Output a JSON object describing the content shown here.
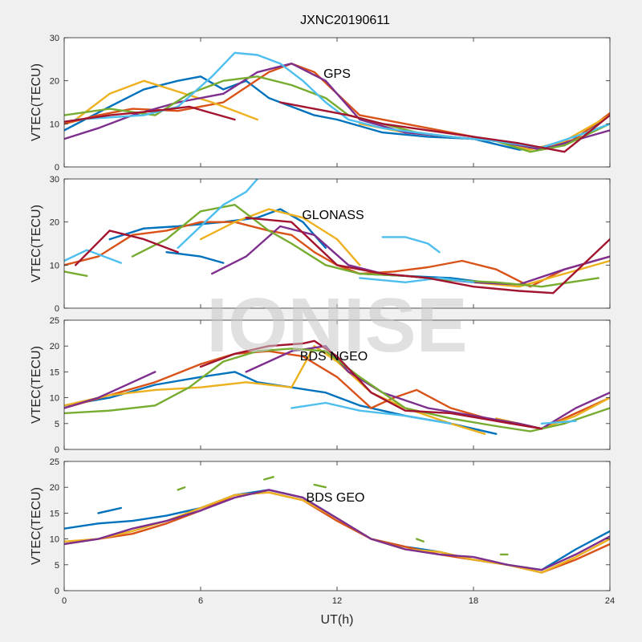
{
  "figure": {
    "title": "JXNC20190611",
    "xlabel": "UT(h)",
    "watermark": "IONISE"
  },
  "colors": [
    "#0072BD",
    "#D95319",
    "#EDB120",
    "#7E2F8E",
    "#77AC30",
    "#4DBEEE",
    "#A2142F"
  ],
  "chart_data": [
    {
      "type": "line",
      "annotation": "GPS",
      "ylabel": "VTEC(TECU)",
      "xlim": [
        0,
        24
      ],
      "ylim": [
        0,
        30
      ],
      "xticks": [
        0,
        6,
        12,
        18,
        24
      ],
      "yticks": [
        0,
        10,
        20,
        30
      ],
      "series": [
        {
          "color": 0,
          "x": [
            0,
            2,
            3.5,
            5,
            6,
            7
          ],
          "y": [
            8.5,
            14,
            18,
            20,
            21,
            18
          ]
        },
        {
          "color": 0,
          "x": [
            7,
            8,
            9,
            10,
            11,
            12,
            14,
            16,
            18,
            20,
            22,
            24
          ],
          "y": [
            18,
            20,
            16,
            14,
            12,
            11,
            8,
            7,
            6.5,
            4,
            5,
            12
          ]
        },
        {
          "color": 1,
          "x": [
            0,
            1.5,
            3,
            5,
            7,
            9,
            10,
            11,
            12,
            13,
            15,
            17,
            19,
            21,
            22.5,
            24
          ],
          "y": [
            10,
            12,
            13.5,
            13,
            15,
            22,
            24,
            22,
            17,
            12,
            10,
            8,
            6,
            4,
            6.5,
            12.5
          ]
        },
        {
          "color": 2,
          "x": [
            0.5,
            2,
            3.5,
            5,
            6.5,
            8.5
          ],
          "y": [
            11,
            17,
            20,
            17.5,
            15,
            11
          ]
        },
        {
          "color": 2,
          "x": [
            13,
            15,
            17,
            19,
            20.5,
            22,
            24
          ],
          "y": [
            10,
            8,
            7,
            6,
            4,
            6,
            12
          ]
        },
        {
          "color": 3,
          "x": [
            0,
            1.5,
            3,
            5,
            7,
            8.5,
            10,
            11.5,
            13,
            15,
            17,
            19,
            21,
            22,
            24
          ],
          "y": [
            6.5,
            9,
            12,
            15,
            17,
            22,
            24,
            20,
            11,
            8,
            7,
            6,
            4,
            5.5,
            8.5
          ]
        },
        {
          "color": 4,
          "x": [
            0,
            2,
            4,
            5.5,
            7,
            8.5,
            10,
            11.5,
            12.5,
            14,
            15.5,
            17,
            19,
            20.5,
            22,
            24
          ],
          "y": [
            12,
            13.5,
            12,
            17,
            20,
            21,
            19,
            16,
            12,
            10,
            8,
            7,
            6,
            3.5,
            5,
            10
          ]
        },
        {
          "color": 5,
          "x": [
            0.5,
            2,
            3.5,
            5,
            6.5,
            7.5,
            8.5,
            9.5,
            10.5,
            11.5,
            12.5,
            14,
            15.5,
            17,
            19,
            21,
            23,
            24
          ],
          "y": [
            11,
            11.5,
            12,
            14,
            21,
            26.5,
            26,
            24,
            20,
            15,
            11,
            9,
            8,
            7,
            6,
            4.5,
            8,
            10
          ]
        },
        {
          "color": 6,
          "x": [
            0,
            2,
            4,
            5.5,
            7.5
          ],
          "y": [
            10.5,
            12,
            13,
            14,
            11
          ]
        },
        {
          "color": 6,
          "x": [
            9.5,
            11,
            12.5,
            14,
            16,
            18,
            20,
            22,
            24
          ],
          "y": [
            15,
            13.5,
            12,
            10,
            8.5,
            7,
            5.5,
            3.5,
            12
          ]
        }
      ]
    },
    {
      "type": "line",
      "annotation": "GLONASS",
      "ylabel": "VTEC(TECU)",
      "xlim": [
        0,
        24
      ],
      "ylim": [
        0,
        30
      ],
      "xticks": [
        0,
        6,
        12,
        18,
        24
      ],
      "yticks": [
        0,
        10,
        20,
        30
      ],
      "series": [
        {
          "color": 0,
          "x": [
            2,
            3.5,
            5,
            7,
            8.5,
            9.5,
            10.5,
            11.5
          ],
          "y": [
            16,
            18.5,
            19,
            20,
            21,
            23,
            20,
            14
          ]
        },
        {
          "color": 0,
          "x": [
            4.5,
            6,
            7
          ],
          "y": [
            13,
            12,
            10.5
          ]
        },
        {
          "color": 0,
          "x": [
            13,
            15,
            17,
            18.5
          ],
          "y": [
            8,
            7.5,
            7,
            6
          ]
        },
        {
          "color": 1,
          "x": [
            0,
            1.5,
            3,
            4.5,
            6,
            7.5,
            9,
            10,
            11,
            12,
            13,
            14.5,
            16,
            17.5,
            19,
            20.5,
            22,
            24
          ],
          "y": [
            10,
            12,
            17,
            18,
            20,
            20,
            18,
            17,
            13,
            10,
            8,
            8.5,
            9.5,
            11,
            9,
            5,
            9,
            12
          ]
        },
        {
          "color": 2,
          "x": [
            6,
            7.5,
            9,
            10.5,
            12,
            13
          ],
          "y": [
            16,
            20,
            23,
            21,
            16,
            10
          ]
        },
        {
          "color": 2,
          "x": [
            18,
            20,
            22,
            24
          ],
          "y": [
            6,
            5,
            8,
            11
          ]
        },
        {
          "color": 3,
          "x": [
            6.5,
            8,
            9.5,
            11,
            12.5,
            14,
            16,
            18,
            20,
            22,
            24
          ],
          "y": [
            8,
            12,
            19,
            17,
            10,
            8,
            7,
            6,
            5.5,
            9,
            12
          ]
        },
        {
          "color": 4,
          "x": [
            3,
            4.5,
            6,
            7.5,
            9,
            10,
            11.5,
            13,
            15,
            17,
            19,
            21,
            23.5
          ],
          "y": [
            12,
            16,
            22.5,
            24,
            18,
            15,
            10,
            8,
            7.5,
            6.5,
            6,
            5,
            7
          ]
        },
        {
          "color": 4,
          "x": [
            0,
            1
          ],
          "y": [
            8.5,
            7.5
          ]
        },
        {
          "color": 5,
          "x": [
            0,
            1,
            2.5
          ],
          "y": [
            11,
            13.5,
            10.5
          ]
        },
        {
          "color": 5,
          "x": [
            5,
            6,
            7,
            8,
            8.5
          ],
          "y": [
            14,
            19,
            24,
            27,
            30
          ]
        },
        {
          "color": 5,
          "x": [
            14,
            15,
            16,
            16.5
          ],
          "y": [
            16.5,
            16.5,
            15,
            13
          ]
        },
        {
          "color": 5,
          "x": [
            13,
            15,
            16.5,
            18
          ],
          "y": [
            7,
            6,
            7,
            6
          ]
        },
        {
          "color": 6,
          "x": [
            0.5,
            2,
            3.5,
            5
          ],
          "y": [
            10,
            18,
            16,
            13
          ]
        },
        {
          "color": 6,
          "x": [
            8,
            10,
            12,
            14,
            16,
            18,
            20,
            21.5,
            23,
            24
          ],
          "y": [
            21,
            20,
            10,
            8,
            7,
            5,
            4,
            3.5,
            11,
            16
          ]
        }
      ]
    },
    {
      "type": "line",
      "annotation": "BDS NGEO",
      "ylabel": "VTEC(TECU)",
      "xlim": [
        0,
        24
      ],
      "ylim": [
        0,
        25
      ],
      "xticks": [
        0,
        6,
        12,
        18,
        24
      ],
      "yticks": [
        0,
        5,
        10,
        15,
        20,
        25
      ],
      "series": [
        {
          "color": 0,
          "x": [
            0,
            2,
            4,
            6,
            7.5,
            8.5,
            10,
            11.5,
            13,
            15,
            17,
            19
          ],
          "y": [
            8.5,
            10,
            12.5,
            14,
            15,
            13,
            12,
            11,
            8.5,
            6.5,
            5,
            3
          ]
        },
        {
          "color": 1,
          "x": [
            0,
            2,
            4,
            6,
            7.5,
            9,
            10.5,
            12,
            13.5,
            14.5,
            15.5,
            17,
            19,
            21,
            22.5,
            24
          ],
          "y": [
            8,
            10.5,
            13,
            16.5,
            18.5,
            19,
            18,
            14,
            8,
            10,
            11.5,
            8,
            5.5,
            4,
            7,
            10
          ]
        },
        {
          "color": 2,
          "x": [
            0,
            2,
            4,
            6,
            8,
            10,
            11,
            12,
            13.5,
            15,
            17,
            18.5
          ],
          "y": [
            8.5,
            10.5,
            11.5,
            12,
            13,
            12,
            20,
            17,
            11,
            8,
            5,
            3
          ]
        },
        {
          "color": 2,
          "x": [
            19,
            21,
            22.5,
            24
          ],
          "y": [
            6,
            4,
            6.5,
            10
          ]
        },
        {
          "color": 3,
          "x": [
            0,
            1.5,
            3,
            4
          ],
          "y": [
            8,
            10,
            13,
            15
          ]
        },
        {
          "color": 3,
          "x": [
            8,
            10,
            11.5,
            12.5,
            14,
            16,
            18,
            20,
            21,
            22.5,
            24
          ],
          "y": [
            15,
            19,
            20,
            15,
            11,
            8,
            6.5,
            5,
            4,
            8,
            11
          ]
        },
        {
          "color": 4,
          "x": [
            0,
            2,
            4,
            5.5,
            7,
            8.5,
            10,
            11.5,
            13,
            15,
            17,
            19,
            20.5,
            22,
            24
          ],
          "y": [
            7,
            7.5,
            8.5,
            12,
            17,
            19,
            19.5,
            19,
            14,
            8,
            6,
            4.5,
            3.5,
            5,
            8
          ]
        },
        {
          "color": 5,
          "x": [
            10,
            11.5,
            13,
            15,
            17
          ],
          "y": [
            8,
            9,
            7.5,
            6.5,
            5
          ]
        },
        {
          "color": 5,
          "x": [
            21,
            22.5
          ],
          "y": [
            5,
            5.5
          ]
        },
        {
          "color": 6,
          "x": [
            6,
            7.5,
            9,
            10.5,
            11,
            12,
            13.5,
            15,
            17,
            19,
            21
          ],
          "y": [
            16,
            18.5,
            20,
            20.5,
            21,
            18,
            11,
            7.5,
            7,
            5.5,
            4
          ]
        }
      ]
    },
    {
      "type": "line",
      "annotation": "BDS GEO",
      "ylabel": "VTEC(TECU)",
      "xlim": [
        0,
        24
      ],
      "ylim": [
        0,
        25
      ],
      "xticks": [
        0,
        6,
        12,
        18,
        24
      ],
      "yticks": [
        0,
        5,
        10,
        15,
        20,
        25
      ],
      "series": [
        {
          "color": 0,
          "x": [
            0,
            1.5,
            3,
            4.5,
            6,
            7.5,
            9,
            10.5,
            12,
            13.5,
            15,
            16.5,
            18,
            19.5,
            21,
            22.5,
            24
          ],
          "y": [
            12,
            13,
            13.5,
            14.5,
            16,
            18.5,
            19.5,
            18,
            14,
            10,
            8.5,
            7.5,
            6,
            5,
            4,
            8,
            11.5
          ]
        },
        {
          "color": 0,
          "x": [
            1.5,
            2.5
          ],
          "y": [
            15,
            16
          ]
        },
        {
          "color": 1,
          "x": [
            0,
            1.5,
            3,
            4.5,
            6,
            7.5,
            9,
            10.5,
            12,
            13.5,
            15,
            16.5,
            18,
            19.5,
            21,
            22.5,
            24
          ],
          "y": [
            9,
            10,
            11,
            13,
            15.5,
            18.5,
            19,
            17.5,
            13.5,
            10,
            8.5,
            7,
            6,
            5,
            3.5,
            6,
            9
          ]
        },
        {
          "color": 2,
          "x": [
            0,
            1.5,
            3,
            4.5,
            6,
            7.5,
            9,
            10.5,
            12,
            13.5,
            15,
            16.5,
            18,
            19.5,
            21,
            22.5,
            24
          ],
          "y": [
            9.5,
            10,
            11.5,
            13.5,
            16,
            18.5,
            19,
            17.5,
            14,
            10,
            8,
            7.5,
            6,
            5,
            3.5,
            6.5,
            10
          ]
        },
        {
          "color": 3,
          "x": [
            0,
            1.5,
            3,
            4.5,
            6,
            7.5,
            9,
            10.5,
            12,
            13.5,
            15,
            16.5,
            18,
            19.5,
            21,
            22.5,
            24
          ],
          "y": [
            9,
            10,
            12,
            13.5,
            15.5,
            18,
            19.5,
            18,
            14,
            10,
            8,
            7,
            6.5,
            5,
            4,
            7,
            10.5
          ]
        },
        {
          "color": 4,
          "x": [
            5,
            5.3
          ],
          "y": [
            19.5,
            20
          ]
        },
        {
          "color": 4,
          "x": [
            8.8,
            9.2
          ],
          "y": [
            21.5,
            22
          ]
        },
        {
          "color": 4,
          "x": [
            11,
            11.5
          ],
          "y": [
            20.5,
            20
          ]
        },
        {
          "color": 4,
          "x": [
            15.5,
            15.8
          ],
          "y": [
            10,
            9.5
          ]
        },
        {
          "color": 4,
          "x": [
            19.2,
            19.5
          ],
          "y": [
            7,
            7
          ]
        }
      ]
    }
  ]
}
